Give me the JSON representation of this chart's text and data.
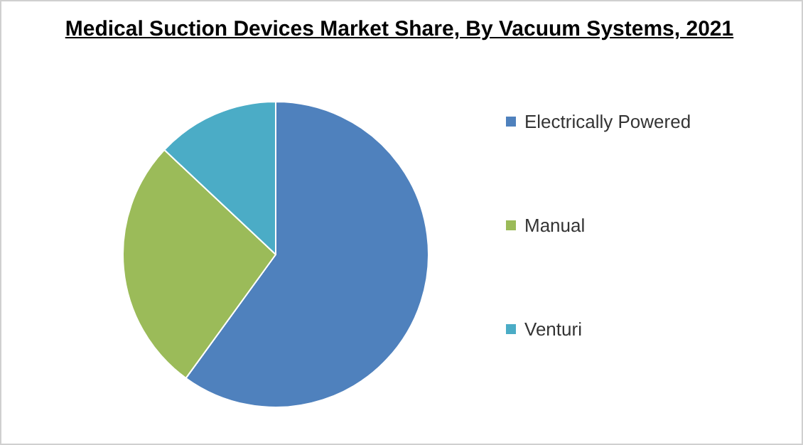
{
  "chart_data": {
    "type": "pie",
    "title": "Medical Suction Devices Market Share, By Vacuum Systems, 2021",
    "categories": [
      "Electrically Powered",
      "Manual",
      "Venturi"
    ],
    "values": [
      60,
      27,
      13
    ],
    "colors": [
      "#4f81bd",
      "#9bbb59",
      "#4bacc6"
    ],
    "legend": "right"
  }
}
